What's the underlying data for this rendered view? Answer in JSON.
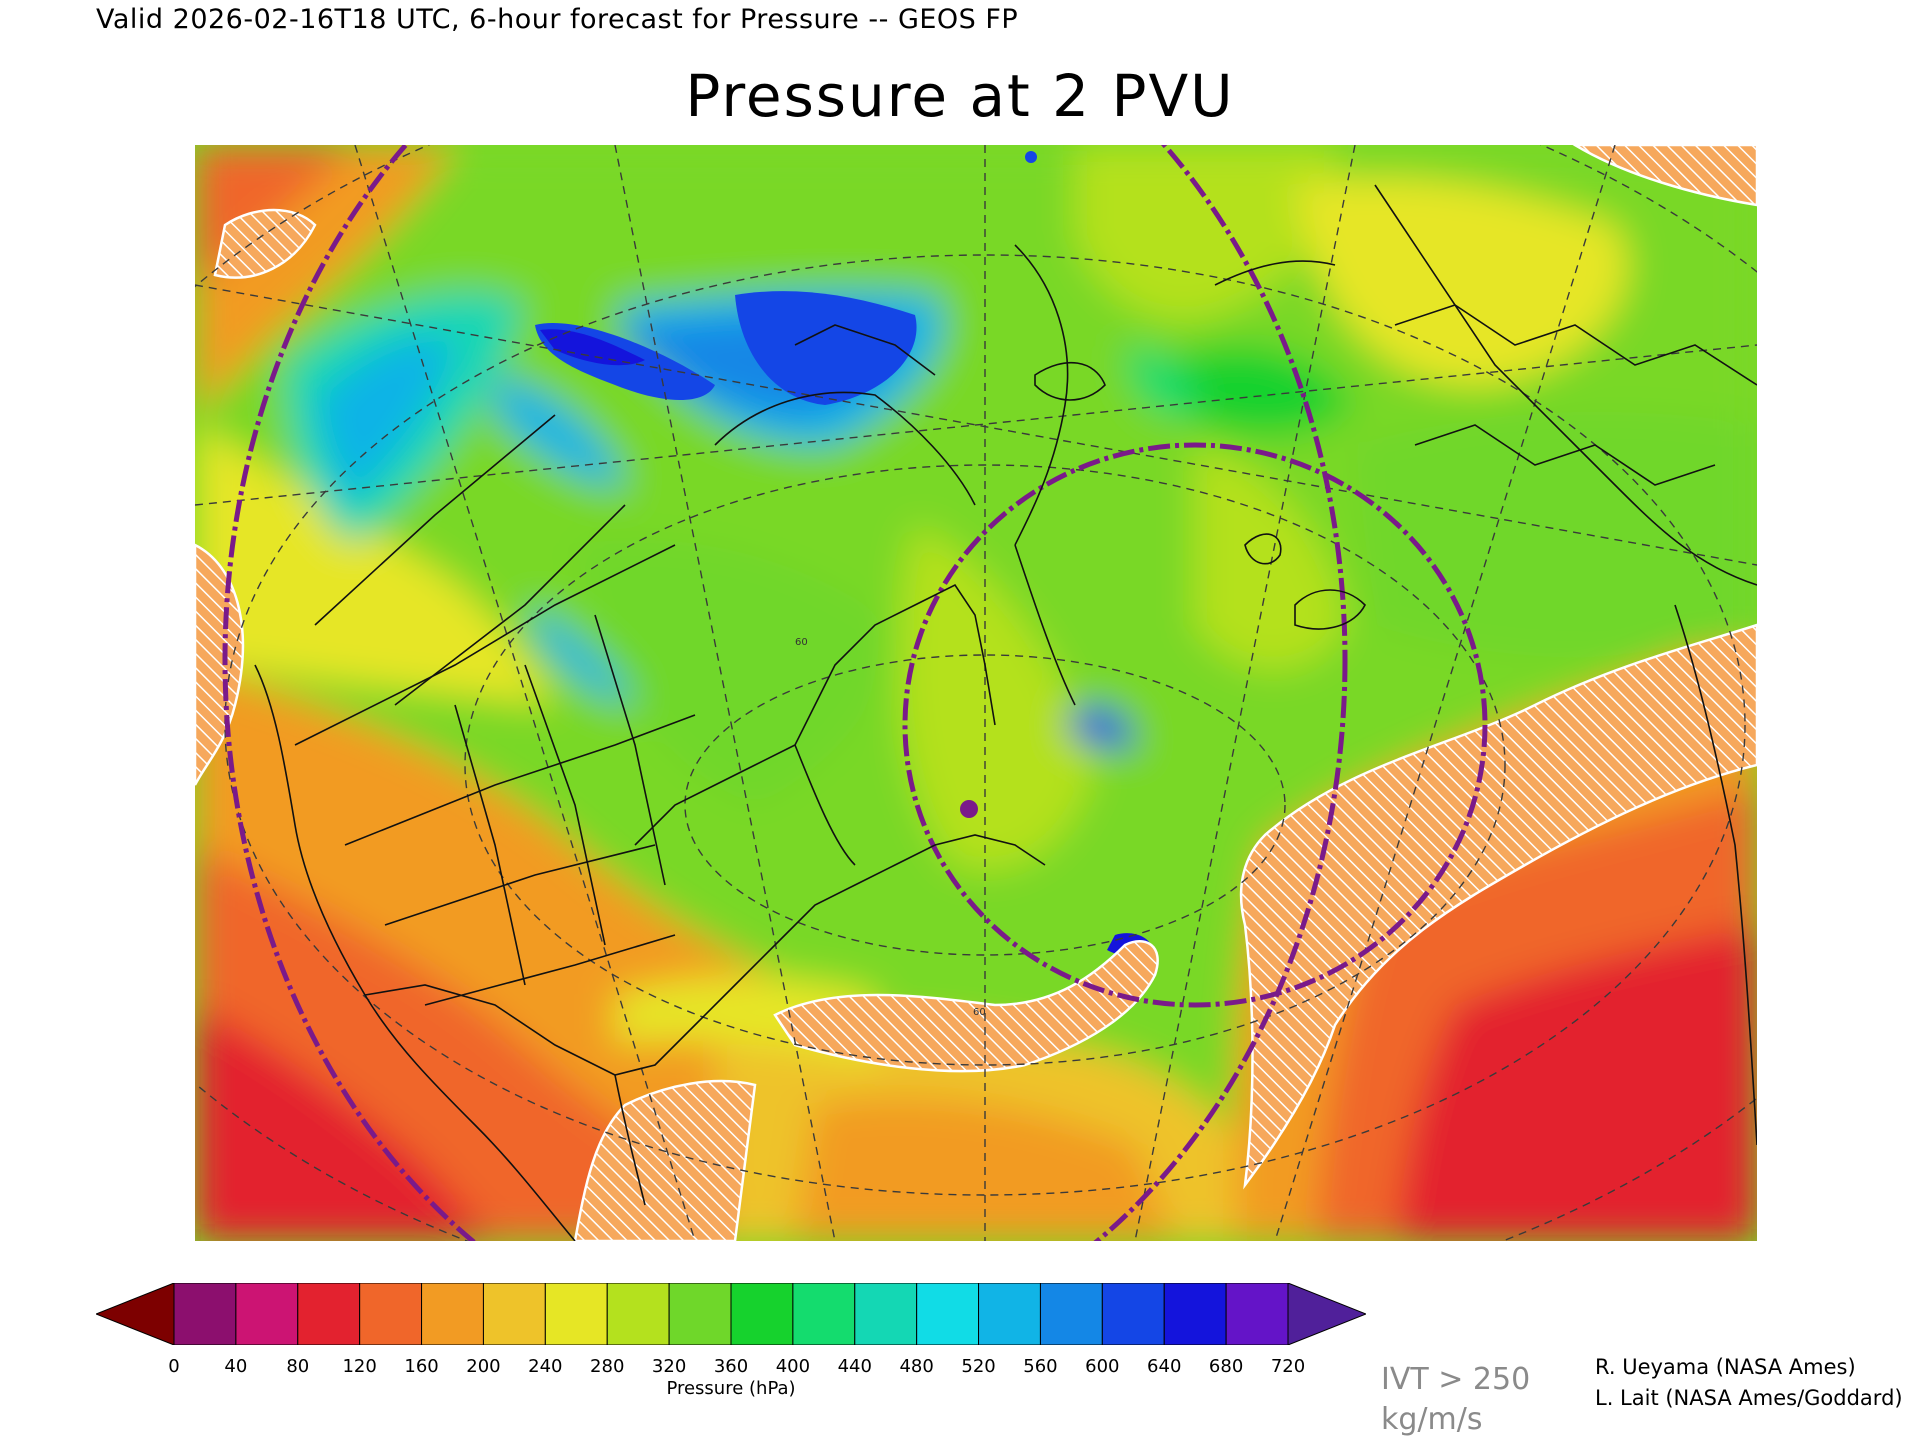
{
  "header": {
    "valid_line": "Valid 2026-02-16T18 UTC, 6-hour forecast for Pressure -- GEOS FP",
    "title": "Pressure at 2 PVU"
  },
  "map": {
    "background_color": "#79d828",
    "graticule_latitude_labels": [
      "60",
      "60"
    ],
    "dashed_ring_color": "#7a1a8a",
    "ivt_hatch_color": "#ffffff",
    "features": [
      "coastlines",
      "state-boundaries",
      "province-boundaries",
      "latitude-longitude-graticule",
      "ivt-hatching"
    ]
  },
  "colorbar": {
    "label": "Pressure (hPa)",
    "ticks": [
      "0",
      "40",
      "80",
      "120",
      "160",
      "200",
      "240",
      "280",
      "320",
      "360",
      "400",
      "440",
      "480",
      "520",
      "560",
      "600",
      "640",
      "680",
      "720"
    ],
    "colors": [
      "#7d0000",
      "#8c0f6e",
      "#cc1473",
      "#e3222f",
      "#f0662a",
      "#f29b23",
      "#eec32a",
      "#e6e625",
      "#b4e11e",
      "#6fd72a",
      "#16d22d",
      "#14dc6e",
      "#14d7b4",
      "#11dce6",
      "#11b4e6",
      "#1487e6",
      "#1446e6",
      "#1414dc",
      "#6414c8",
      "#50209a"
    ]
  },
  "ivt_note": "IVT > 250 kg/m/s",
  "credits": [
    "R. Ueyama (NASA Ames)",
    "L. Lait (NASA Ames/Goddard)"
  ]
}
